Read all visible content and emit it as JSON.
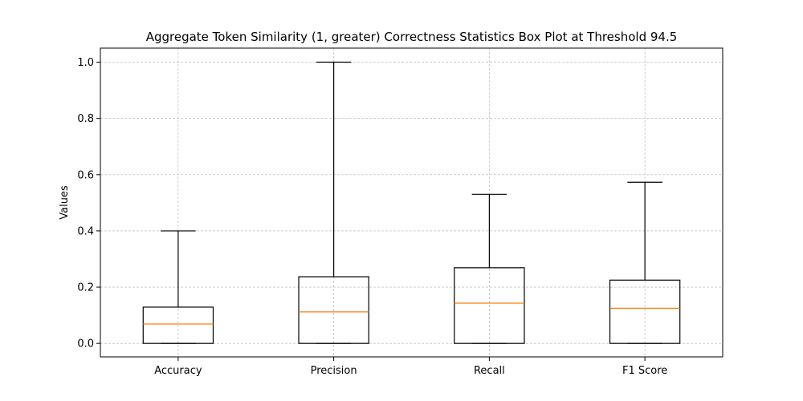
{
  "chart_data": {
    "type": "box",
    "title": "Aggregate Token Similarity (1, greater) Correctness Statistics Box Plot at Threshold 94.5",
    "xlabel": "",
    "ylabel": "Values",
    "categories": [
      "Accuracy",
      "Precision",
      "Recall",
      "F1 Score"
    ],
    "ylim": [
      -0.048,
      1.05
    ],
    "yticks": [
      0.0,
      0.2,
      0.4,
      0.6,
      0.8,
      1.0
    ],
    "ytick_labels": [
      "0.0",
      "0.2",
      "0.4",
      "0.6",
      "0.8",
      "1.0"
    ],
    "grid": true,
    "series": [
      {
        "category": "Accuracy",
        "whisker_low": 0.0,
        "q1": 0.0,
        "median": 0.069,
        "q3": 0.129,
        "whisker_high": 0.4
      },
      {
        "category": "Precision",
        "whisker_low": 0.0,
        "q1": 0.0,
        "median": 0.112,
        "q3": 0.237,
        "whisker_high": 1.0
      },
      {
        "category": "Recall",
        "whisker_low": 0.0,
        "q1": 0.0,
        "median": 0.143,
        "q3": 0.269,
        "whisker_high": 0.53
      },
      {
        "category": "F1 Score",
        "whisker_low": 0.0,
        "q1": 0.0,
        "median": 0.125,
        "q3": 0.225,
        "whisker_high": 0.573
      }
    ],
    "colors": {
      "box": "#000000",
      "median": "#ff7f0e",
      "grid": "#b0b0b0"
    }
  }
}
